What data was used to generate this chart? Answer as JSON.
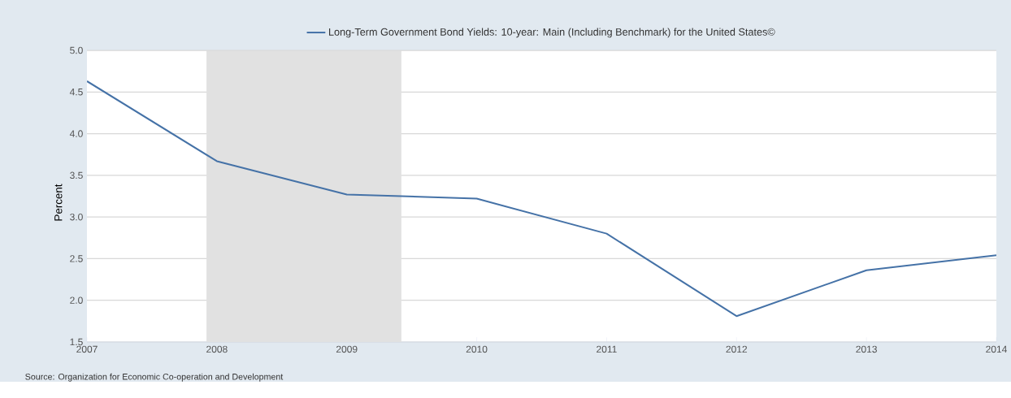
{
  "chart_data": {
    "type": "line",
    "x": [
      2007,
      2008,
      2009,
      2010,
      2011,
      2012,
      2013,
      2014
    ],
    "series": [
      {
        "name": "Long-Term Government Bond Yields: 10-year: Main (Including Benchmark) for the United States©",
        "color": "#4572a7",
        "values": [
          4.63,
          3.67,
          3.27,
          3.22,
          2.8,
          1.81,
          2.36,
          2.54
        ]
      }
    ],
    "ylabel": "Percent",
    "xlim": [
      2007,
      2014
    ],
    "xticks": [
      2007,
      2008,
      2009,
      2010,
      2011,
      2012,
      2013,
      2014
    ],
    "ylim": [
      1.5,
      5.0
    ],
    "yticks": [
      {
        "value": 1.5,
        "label": "1.5"
      },
      {
        "value": 2.0,
        "label": "2.0"
      },
      {
        "value": 2.5,
        "label": "2.5"
      },
      {
        "value": 3.0,
        "label": "3.0"
      },
      {
        "value": 3.5,
        "label": "3.5"
      },
      {
        "value": 4.0,
        "label": "4.0"
      },
      {
        "value": 4.5,
        "label": "4.5"
      },
      {
        "value": 5.0,
        "label": "5.0"
      }
    ],
    "bands": [
      {
        "axis": "x",
        "from": 2007.92,
        "to": 2009.42,
        "color": "#e1e1e1"
      }
    ],
    "grid": "y",
    "legend": "top",
    "marker": "none",
    "line_style": "solid",
    "annotations": [
      "Source: Organization for Economic Co-operation and Development"
    ]
  }
}
